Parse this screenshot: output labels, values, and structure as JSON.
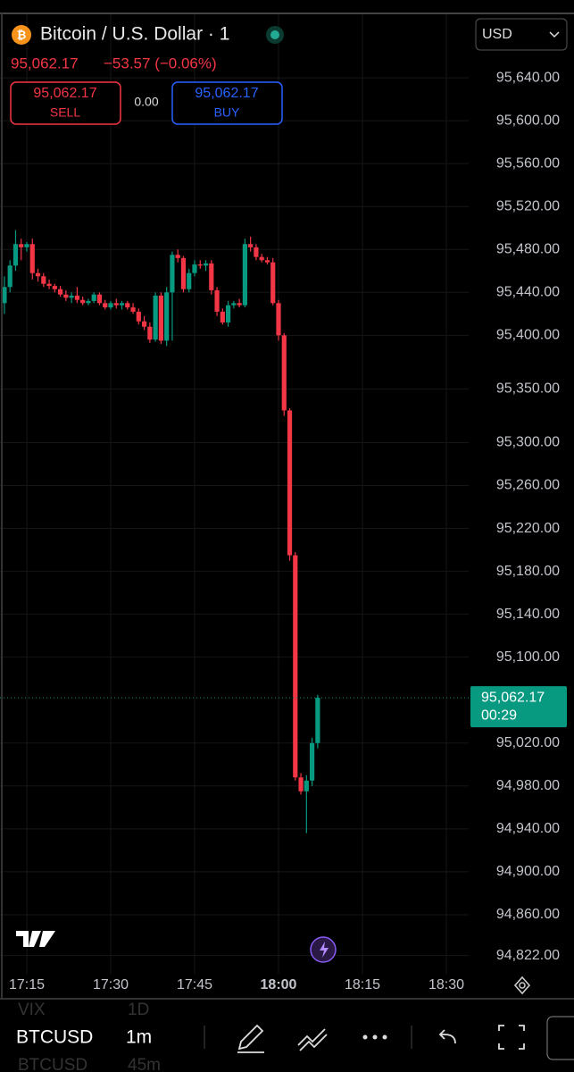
{
  "header": {
    "title": "Bitcoin / U.S. Dollar · 1",
    "price": "95,062.17",
    "change": "−53.57 (−0.06%)",
    "sell_price": "95,062.17",
    "sell": "SELL",
    "spread": "0.00",
    "buy_price": "95,062.17",
    "buy": "BUY",
    "currency": "USD"
  },
  "chart_data": {
    "type": "candlestick",
    "up_color": "#089981",
    "down_color": "#f23645",
    "grid": true,
    "x": [
      "17:11",
      "17:12",
      "17:13",
      "17:14",
      "17:15",
      "17:16",
      "17:17",
      "17:18",
      "17:19",
      "17:20",
      "17:21",
      "17:22",
      "17:23",
      "17:24",
      "17:25",
      "17:26",
      "17:27",
      "17:28",
      "17:29",
      "17:30",
      "17:31",
      "17:32",
      "17:33",
      "17:34",
      "17:35",
      "17:36",
      "17:37",
      "17:38",
      "17:39",
      "17:40",
      "17:41",
      "17:42",
      "17:43",
      "17:44",
      "17:45",
      "17:46",
      "17:47",
      "17:48",
      "17:49",
      "17:50",
      "17:51",
      "17:52",
      "17:53",
      "17:54",
      "17:55",
      "17:56",
      "17:57",
      "17:58",
      "17:59",
      "18:00",
      "18:01",
      "18:02",
      "18:03",
      "18:04",
      "18:05",
      "18:06",
      "18:07"
    ],
    "open": [
      95430,
      95445,
      95465,
      95485,
      95482,
      95485,
      95458,
      95455,
      95448,
      95446,
      95443,
      95438,
      95435,
      95437,
      95433,
      95430,
      95432,
      95438,
      95430,
      95426,
      95430,
      95428,
      95430,
      95426,
      95422,
      95413,
      95408,
      95396,
      95437,
      95395,
      95440,
      95475,
      95472,
      95443,
      95458,
      95466,
      95465,
      95467,
      95442,
      95422,
      95412,
      95428,
      95430,
      95428,
      95485,
      95482,
      95473,
      95470,
      95468,
      95430,
      95400,
      95330,
      95195,
      94988,
      94975,
      94985,
      95020
    ],
    "high": [
      95455,
      95470,
      95498,
      95490,
      95487,
      95490,
      95462,
      95458,
      95452,
      95448,
      95446,
      95442,
      95440,
      95445,
      95436,
      95434,
      95440,
      95440,
      95433,
      95432,
      95434,
      95432,
      95432,
      95430,
      95425,
      95418,
      95412,
      95440,
      95440,
      95445,
      95478,
      95480,
      95474,
      95462,
      95470,
      95470,
      95470,
      95470,
      95445,
      95425,
      95432,
      95432,
      95434,
      95490,
      95492,
      95485,
      95476,
      95473,
      95472,
      95433,
      95402,
      95332,
      95198,
      94992,
      94990,
      95025,
      95065
    ],
    "low": [
      95420,
      95440,
      95460,
      95470,
      95478,
      95452,
      95450,
      95445,
      95443,
      95440,
      95436,
      95432,
      95430,
      95430,
      95428,
      95428,
      95430,
      95428,
      95424,
      95424,
      95425,
      95424,
      95424,
      95420,
      95410,
      95405,
      95393,
      95394,
      95392,
      95390,
      95395,
      95468,
      95440,
      95440,
      95455,
      95462,
      95460,
      95438,
      95418,
      95410,
      95408,
      95425,
      95426,
      95426,
      95478,
      95470,
      95468,
      95466,
      95428,
      95395,
      95325,
      95190,
      94985,
      94972,
      94936,
      94980,
      95015
    ],
    "close": [
      95445,
      95465,
      95485,
      95482,
      95485,
      95458,
      95455,
      95448,
      95446,
      95443,
      95438,
      95435,
      95437,
      95433,
      95430,
      95432,
      95438,
      95430,
      95426,
      95430,
      95428,
      95430,
      95426,
      95422,
      95413,
      95408,
      95396,
      95437,
      95395,
      95440,
      95475,
      95472,
      95443,
      95458,
      95466,
      95465,
      95467,
      95442,
      95422,
      95412,
      95428,
      95430,
      95428,
      95485,
      95482,
      95473,
      95470,
      95468,
      95430,
      95400,
      95330,
      95195,
      94988,
      94975,
      94985,
      95020,
      95062.17
    ],
    "ylim": [
      94805,
      95700
    ],
    "yticks": [
      {
        "value": 95640,
        "label": "95,640.00"
      },
      {
        "value": 95600,
        "label": "95,600.00"
      },
      {
        "value": 95560,
        "label": "95,560.00"
      },
      {
        "value": 95520,
        "label": "95,520.00"
      },
      {
        "value": 95480,
        "label": "95,480.00"
      },
      {
        "value": 95440,
        "label": "95,440.00"
      },
      {
        "value": 95400,
        "label": "95,400.00"
      },
      {
        "value": 95350,
        "label": "95,350.00"
      },
      {
        "value": 95300,
        "label": "95,300.00"
      },
      {
        "value": 95260,
        "label": "95,260.00"
      },
      {
        "value": 95220,
        "label": "95,220.00"
      },
      {
        "value": 95180,
        "label": "95,180.00"
      },
      {
        "value": 95140,
        "label": "95,140.00"
      },
      {
        "value": 95100,
        "label": "95,100.00"
      },
      {
        "value": 95020,
        "label": "95,020.00"
      },
      {
        "value": 94980,
        "label": "94,980.00"
      },
      {
        "value": 94940,
        "label": "94,940.00"
      },
      {
        "value": 94900,
        "label": "94,900.00"
      },
      {
        "value": 94860,
        "label": "94,860.00"
      },
      {
        "value": 94822,
        "label": "94,822.00"
      }
    ],
    "xticks": [
      "17:15",
      "17:30",
      "17:45",
      "18:00",
      "18:15",
      "18:30"
    ],
    "bold_xtick": "18:00",
    "price_label": "95,062.17",
    "countdown": "00:29"
  },
  "toolbar": {
    "symbol": "BTCUSD",
    "interval": "1m",
    "ghost_symbol_1": "VIX",
    "ghost_interval_1": "1D",
    "ghost_symbol_2": "BTCUSD",
    "ghost_interval_2": "45m"
  }
}
